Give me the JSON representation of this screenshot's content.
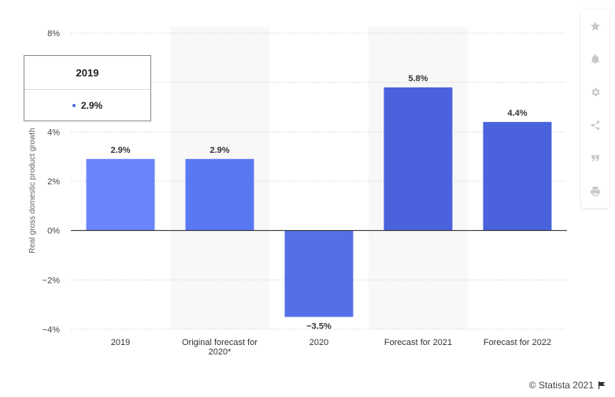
{
  "chart_data": {
    "type": "bar",
    "categories": [
      "2019",
      "Original forecast for 2020*",
      "2020",
      "Forecast for 2021",
      "Forecast for 2022"
    ],
    "category_lines": [
      [
        "2019"
      ],
      [
        "Original forecast for",
        "2020*"
      ],
      [
        "2020"
      ],
      [
        "Forecast for 2021"
      ],
      [
        "Forecast for 2022"
      ]
    ],
    "values": [
      2.9,
      2.9,
      -3.5,
      5.8,
      4.4
    ],
    "value_labels": [
      "2.9%",
      "2.9%",
      "−3.5%",
      "5.8%",
      "4.4%"
    ],
    "highlighted": [
      "2019",
      "Original forecast for 2020*",
      "Forecast for 2021"
    ],
    "ylabel": "Real gross domestic product growth",
    "ylim": [
      -4,
      8
    ],
    "yticks": [
      8,
      6,
      4,
      2,
      0,
      -2,
      -4
    ],
    "ytick_labels": [
      "8%",
      "6%",
      "4%",
      "2%",
      "0%",
      "−2%",
      "−4%"
    ],
    "grid": true,
    "colors": {
      "bar_0": "#6a85fb",
      "bar_1": "#5b78f3",
      "bar_2": "#5570e7",
      "bar_3": "#4a63dd",
      "bar_4": "#4a63dd",
      "band": "#f8f8f8",
      "grid": "#c8c8c8"
    }
  },
  "tooltip": {
    "title": "2019",
    "value": "2.9%"
  },
  "sidebar": {
    "icons": [
      "star-icon",
      "bell-icon",
      "gear-icon",
      "share-icon",
      "quote-icon",
      "print-icon"
    ]
  },
  "footer": {
    "credit": "© Statista 2021"
  }
}
